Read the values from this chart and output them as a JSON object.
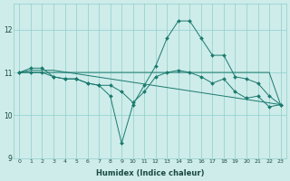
{
  "xlabel": "Humidex (Indice chaleur)",
  "bg_color": "#ceecea",
  "grid_color": "#8ecfca",
  "line_color": "#1a7a6e",
  "xlim": [
    -0.5,
    23.5
  ],
  "ylim": [
    9,
    12.6
  ],
  "yticks": [
    9,
    10,
    11,
    12
  ],
  "xticks": [
    0,
    1,
    2,
    3,
    4,
    5,
    6,
    7,
    8,
    9,
    10,
    11,
    12,
    13,
    14,
    15,
    16,
    17,
    18,
    19,
    20,
    21,
    22,
    23
  ],
  "series": [
    {
      "x": [
        0,
        1,
        2,
        3,
        4,
        5,
        6,
        7,
        8,
        9,
        10,
        11,
        12,
        13,
        14,
        15,
        16,
        17,
        18,
        19,
        20,
        21,
        22,
        23
      ],
      "y": [
        11.0,
        11.1,
        11.1,
        10.9,
        10.85,
        10.85,
        10.75,
        10.7,
        10.45,
        9.35,
        10.25,
        10.7,
        11.15,
        11.8,
        12.2,
        12.2,
        11.8,
        11.4,
        11.4,
        10.9,
        10.85,
        10.75,
        10.45,
        10.25
      ],
      "marker": true
    },
    {
      "x": [
        0,
        1,
        2,
        3,
        23
      ],
      "y": [
        11.0,
        11.05,
        11.05,
        11.05,
        10.25
      ],
      "marker": false
    },
    {
      "x": [
        0,
        1,
        2,
        3,
        4,
        5,
        6,
        7,
        8,
        9,
        10,
        11,
        12,
        13,
        14,
        15,
        16,
        17,
        18,
        19,
        20,
        21,
        22,
        23
      ],
      "y": [
        11.0,
        11.0,
        11.0,
        11.0,
        11.0,
        11.0,
        11.0,
        11.0,
        11.0,
        11.0,
        11.0,
        11.0,
        11.0,
        11.0,
        11.0,
        11.0,
        11.0,
        11.0,
        11.0,
        11.0,
        11.0,
        11.0,
        11.0,
        10.25
      ],
      "marker": false
    },
    {
      "x": [
        0,
        1,
        2,
        3,
        4,
        5,
        6,
        7,
        8,
        9,
        10,
        11,
        12,
        13,
        14,
        15,
        16,
        17,
        18,
        19,
        20,
        21,
        22,
        23
      ],
      "y": [
        11.0,
        11.0,
        11.0,
        10.9,
        10.85,
        10.85,
        10.75,
        10.7,
        10.7,
        10.55,
        10.3,
        10.55,
        10.9,
        11.0,
        11.05,
        11.0,
        10.9,
        10.75,
        10.85,
        10.55,
        10.4,
        10.45,
        10.2,
        10.25
      ],
      "marker": true
    }
  ]
}
